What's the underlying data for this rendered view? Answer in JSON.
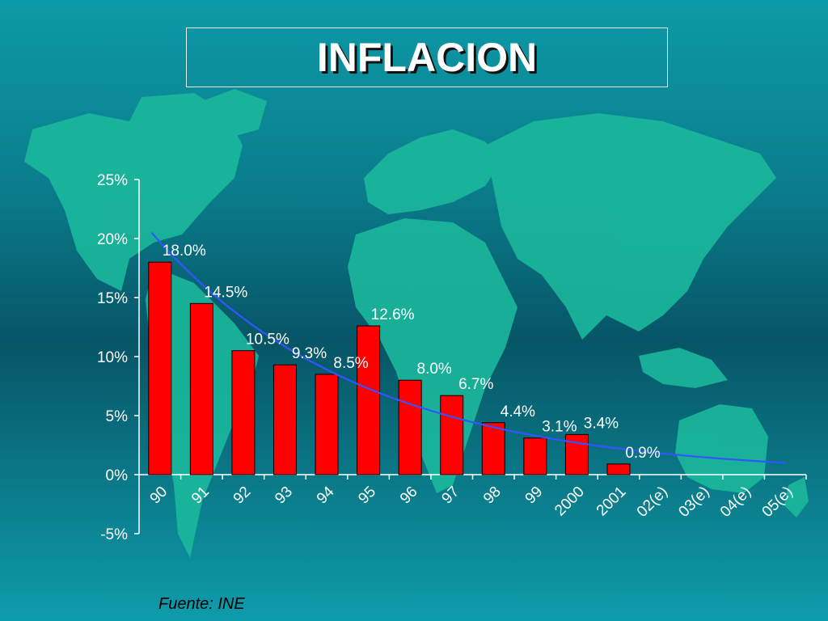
{
  "title": "INFLACION",
  "source": "Fuente: INE",
  "colors": {
    "bar": "#ff0000",
    "trend": "#3355ff",
    "label_text": "#ffffff",
    "axis": "#ffffff",
    "land": "#1bb89c"
  },
  "chart_data": {
    "type": "bar",
    "title": "INFLACION",
    "xlabel": "",
    "ylabel": "",
    "ylim": [
      -5,
      25
    ],
    "yticks": [
      "-5%",
      "0%",
      "5%",
      "10%",
      "15%",
      "20%",
      "25%"
    ],
    "ytick_values": [
      -5,
      0,
      5,
      10,
      15,
      20,
      25
    ],
    "categories": [
      "90",
      "91",
      "92",
      "93",
      "94",
      "95",
      "96",
      "97",
      "98",
      "99",
      "2000",
      "2001",
      "02(e)",
      "03(e)",
      "04(e)",
      "05(e)"
    ],
    "values": [
      18.0,
      14.5,
      10.5,
      9.3,
      8.5,
      12.6,
      8.0,
      6.7,
      4.4,
      3.1,
      3.4,
      0.9,
      null,
      null,
      null,
      null
    ],
    "labels": [
      "18.0%",
      "14.5%",
      "10.5%",
      "9.3%",
      "8.5%",
      "12.6%",
      "8.0%",
      "6.7%",
      "4.4%",
      "3.1%",
      "3.4%",
      "0.9%",
      "",
      "",
      "",
      ""
    ],
    "trend": {
      "type": "line",
      "x_start": "90",
      "x_end": "05(e)",
      "y_start": 20.5,
      "y_end": 1.0
    },
    "grid": false,
    "legend": "none"
  }
}
